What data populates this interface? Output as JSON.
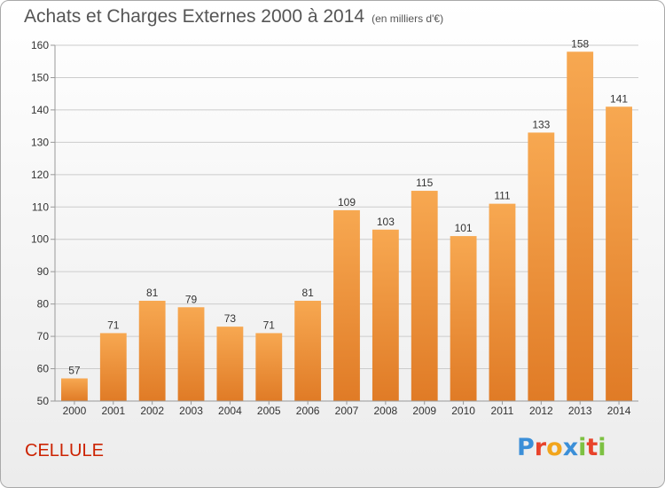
{
  "title": "Achats et Charges Externes 2000 à 2014",
  "unit_note": "(en milliers d'€)",
  "footer_name": "CELLULE",
  "logo": {
    "letters": [
      "P",
      "r",
      "o",
      "x",
      "i",
      "t",
      "i"
    ],
    "colors": [
      "#3b8fd8",
      "#e8432b",
      "#f2a51c",
      "#3b8fd8",
      "#7dc142",
      "#e8432b",
      "#7dc142"
    ]
  },
  "colors": {
    "bar_light": "#f7a851",
    "bar_dark": "#e07b26",
    "grid": "#cccccc",
    "axis": "#999999",
    "text": "#333333"
  },
  "chart_data": {
    "type": "bar",
    "title": "Achats et Charges Externes 2000 à 2014",
    "categories": [
      "2000",
      "2001",
      "2002",
      "2003",
      "2004",
      "2005",
      "2006",
      "2007",
      "2008",
      "2009",
      "2010",
      "2011",
      "2012",
      "2013",
      "2014"
    ],
    "values": [
      57,
      71,
      81,
      79,
      73,
      71,
      81,
      109,
      103,
      115,
      101,
      111,
      133,
      158,
      141
    ],
    "data_labels": [
      "57",
      "71",
      "81",
      "79",
      "73",
      "71",
      "81",
      "109",
      "103",
      "115",
      "101",
      "111",
      "133",
      "158",
      "141"
    ],
    "ylim": [
      50,
      160
    ],
    "yticks": [
      50,
      60,
      70,
      80,
      90,
      100,
      110,
      120,
      130,
      140,
      150,
      160
    ],
    "ytick_labels": [
      "50",
      "60",
      "70",
      "80",
      "90",
      "100",
      "110",
      "120",
      "130",
      "140",
      "150",
      "160"
    ],
    "xlabel": "",
    "ylabel": "",
    "grid": true,
    "legend": "none"
  }
}
